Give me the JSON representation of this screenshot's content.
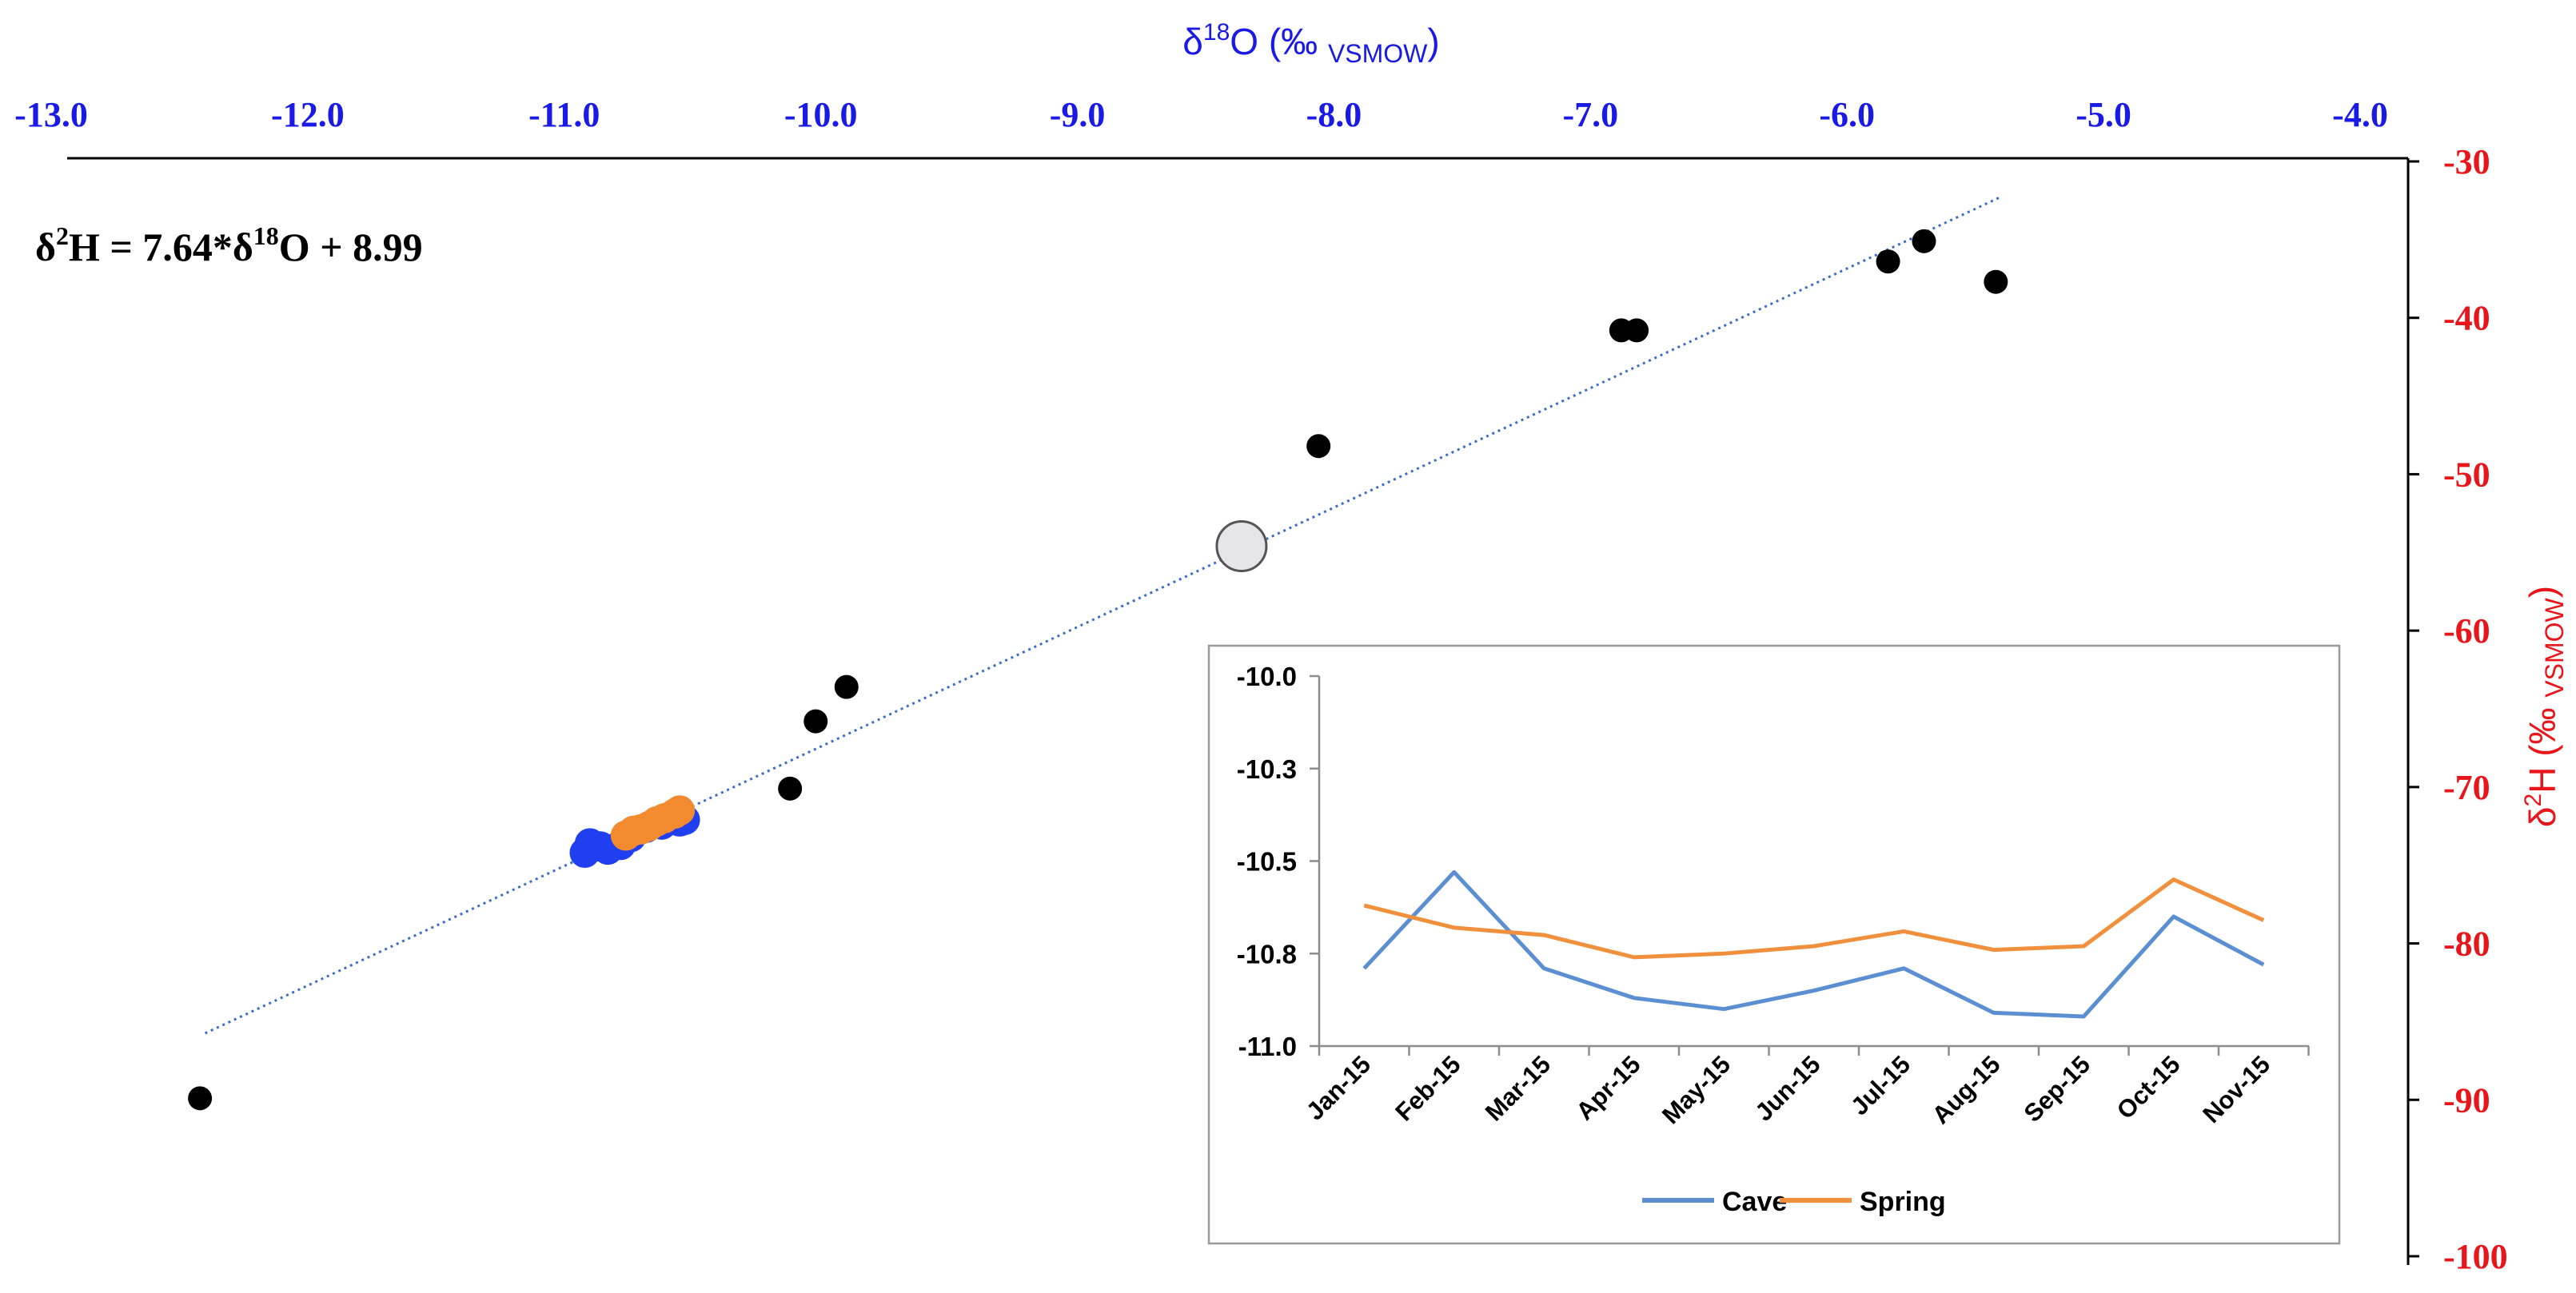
{
  "chart_data": [
    {
      "type": "scatter",
      "title": "",
      "xlabel": {
        "base": "δ",
        "sup": "18",
        "rest": "O (‰ ",
        "sub": "VSMOW",
        "end": ")"
      },
      "ylabel": {
        "base": "δ",
        "sup": "2",
        "rest": "H (‰ ",
        "sub": "VSMOW",
        "end": ")"
      },
      "xlim": [
        -13.0,
        -4.0
      ],
      "ylim": [
        -100,
        -30
      ],
      "x_ticks": [
        "-13.0",
        "-12.0",
        "-11.0",
        "-10.0",
        "-9.0",
        "-8.0",
        "-7.0",
        "-6.0",
        "-5.0",
        "-4.0"
      ],
      "y_ticks": [
        "-30",
        "-40",
        "-50",
        "-60",
        "-70",
        "-80",
        "-90",
        "-100"
      ],
      "equation": {
        "lhs_base": "δ",
        "lhs_sup": "2",
        "lhs_rest": "H  = 7.64*δ",
        "rhs_sup": "18",
        "rhs_rest": "O + 8.99"
      },
      "trendline": {
        "slope": 7.64,
        "intercept": 8.99,
        "x_range": [
          -12.4,
          -5.4
        ]
      },
      "series": [
        {
          "values": [
            {
              "x": -12.42,
              "y": -89.9
            },
            {
              "x": -10.12,
              "y": -70.1
            },
            {
              "x": -10.02,
              "y": -65.8
            },
            {
              "x": -9.9,
              "y": -63.6
            },
            {
              "x": -8.06,
              "y": -48.2
            },
            {
              "x": -6.88,
              "y": -40.8
            },
            {
              "x": -6.82,
              "y": -40.8
            },
            {
              "x": -5.84,
              "y": -36.4
            },
            {
              "x": -5.7,
              "y": -35.1
            },
            {
              "x": -5.42,
              "y": -37.7
            }
          ]
        },
        {
          "values": [
            {
              "x": -10.92,
              "y": -74.2
            },
            {
              "x": -10.9,
              "y": -73.6
            },
            {
              "x": -10.86,
              "y": -73.8
            },
            {
              "x": -10.83,
              "y": -74.0
            },
            {
              "x": -10.78,
              "y": -73.7
            },
            {
              "x": -10.74,
              "y": -73.2
            },
            {
              "x": -10.68,
              "y": -72.6
            },
            {
              "x": -10.62,
              "y": -72.4
            },
            {
              "x": -10.55,
              "y": -72.2
            },
            {
              "x": -10.53,
              "y": -72.1
            }
          ]
        },
        {
          "values": [
            {
              "x": -10.76,
              "y": -73.1
            },
            {
              "x": -10.73,
              "y": -72.8
            },
            {
              "x": -10.7,
              "y": -72.7
            },
            {
              "x": -10.67,
              "y": -72.5
            },
            {
              "x": -10.64,
              "y": -72.2
            },
            {
              "x": -10.61,
              "y": -72.0
            },
            {
              "x": -10.57,
              "y": -71.7
            },
            {
              "x": -10.55,
              "y": -71.5
            }
          ]
        },
        {
          "values": [
            {
              "x": -8.36,
              "y": -54.6
            }
          ]
        }
      ],
      "colors": {
        "axis_x": "#1a1ae6",
        "axis_y": "#e8161b",
        "points": "#000000",
        "cave_points": "#1f3ff0",
        "spring_points": "#f28a30",
        "mean_point": "#e6e6ea",
        "trendline": "#3b6fc4"
      },
      "grid": false,
      "legend": "none"
    },
    {
      "type": "line",
      "title": "",
      "categories": [
        "Jan-15",
        "Feb-15",
        "Mar-15",
        "Apr-15",
        "May-15",
        "Jun-15",
        "Jul-15",
        "Aug-15",
        "Sep-15",
        "Oct-15",
        "Nov-15"
      ],
      "y_ticks": [
        "-10.0",
        "-10.3",
        "-10.5",
        "-10.8",
        "-11.0"
      ],
      "ylim": [
        -11.0,
        -10.0
      ],
      "series": [
        {
          "name": "Cave",
          "color": "#5b8fd2",
          "values": [
            -10.79,
            -10.53,
            -10.79,
            -10.87,
            -10.9,
            -10.85,
            -10.79,
            -10.91,
            -10.92,
            -10.65,
            -10.78
          ]
        },
        {
          "name": "Spring",
          "color": "#f0903c",
          "values": [
            -10.62,
            -10.68,
            -10.7,
            -10.76,
            -10.75,
            -10.73,
            -10.69,
            -10.74,
            -10.73,
            -10.55,
            -10.66
          ]
        }
      ],
      "legend": "bottom",
      "grid": false
    }
  ]
}
